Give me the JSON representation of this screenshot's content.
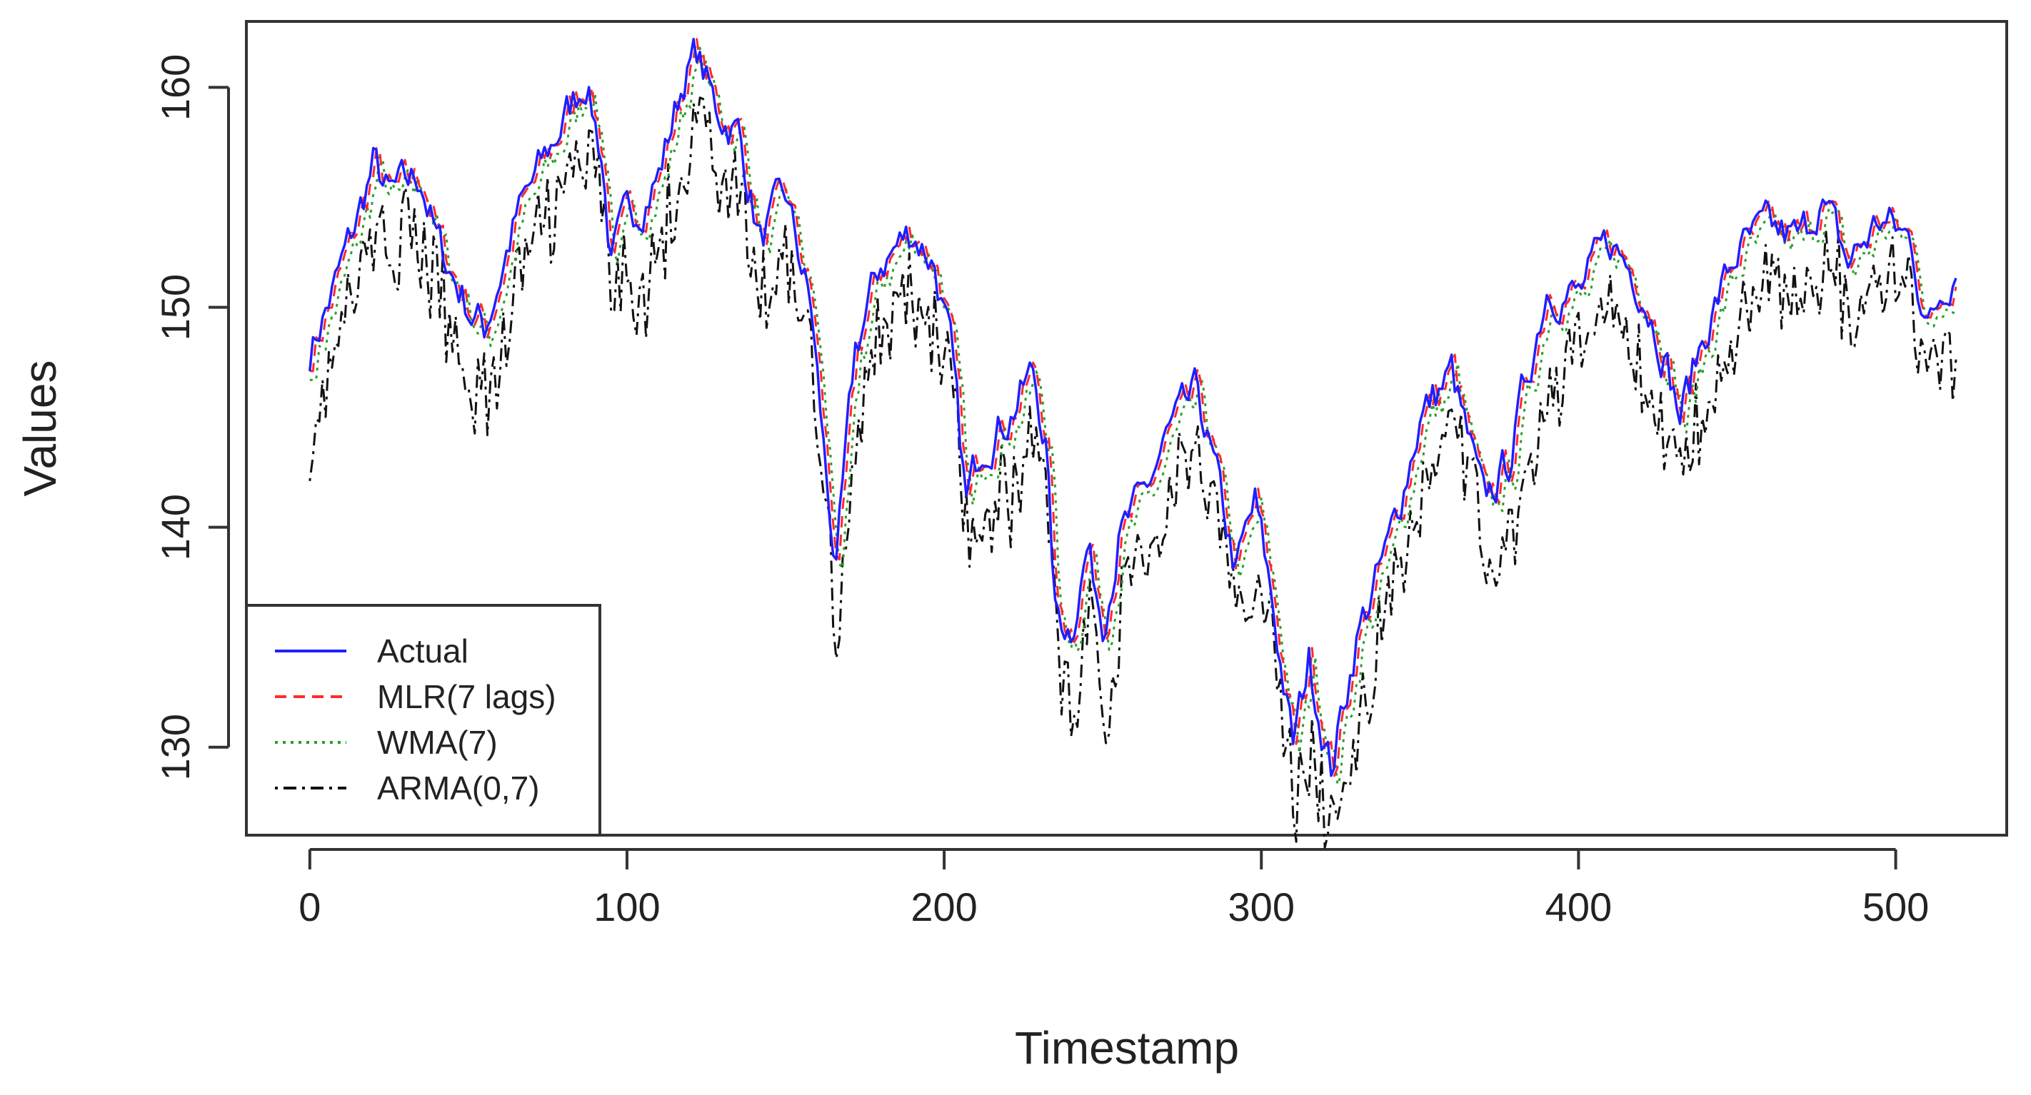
{
  "chart_data": {
    "type": "line",
    "title": "",
    "xlabel": "Timestamp",
    "ylabel": "Values",
    "xlim": [
      -20,
      535
    ],
    "ylim": [
      126,
      163
    ],
    "xticks": [
      0,
      100,
      200,
      300,
      400,
      500
    ],
    "yticks": [
      130,
      140,
      150,
      160
    ],
    "legend": {
      "position": "bottom-left"
    },
    "anchors": [
      [
        0,
        148
      ],
      [
        8,
        151
      ],
      [
        15,
        154
      ],
      [
        20,
        156.5
      ],
      [
        25,
        155
      ],
      [
        35,
        156
      ],
      [
        40,
        153
      ],
      [
        50,
        150
      ],
      [
        55,
        149
      ],
      [
        65,
        154
      ],
      [
        75,
        157
      ],
      [
        87,
        160.5
      ],
      [
        92,
        157
      ],
      [
        95,
        152
      ],
      [
        100,
        154
      ],
      [
        110,
        156
      ],
      [
        118,
        160.5
      ],
      [
        122,
        161.5
      ],
      [
        128,
        159
      ],
      [
        135,
        158
      ],
      [
        142,
        153
      ],
      [
        150,
        155
      ],
      [
        158,
        150
      ],
      [
        163,
        142
      ],
      [
        166,
        138
      ],
      [
        172,
        148
      ],
      [
        180,
        152
      ],
      [
        190,
        153.5
      ],
      [
        197,
        152
      ],
      [
        202,
        148
      ],
      [
        207,
        141
      ],
      [
        212,
        144
      ],
      [
        220,
        145
      ],
      [
        228,
        147
      ],
      [
        232,
        144
      ],
      [
        235,
        136
      ],
      [
        240,
        135.5
      ],
      [
        245,
        139
      ],
      [
        250,
        136
      ],
      [
        255,
        139.5
      ],
      [
        262,
        141
      ],
      [
        270,
        144
      ],
      [
        280,
        146
      ],
      [
        286,
        142
      ],
      [
        292,
        138
      ],
      [
        298,
        141
      ],
      [
        303,
        137
      ],
      [
        310,
        130
      ],
      [
        315,
        134
      ],
      [
        322,
        129
      ],
      [
        330,
        135
      ],
      [
        340,
        139
      ],
      [
        350,
        145
      ],
      [
        360,
        147
      ],
      [
        370,
        141
      ],
      [
        378,
        143
      ],
      [
        390,
        151
      ],
      [
        400,
        150.5
      ],
      [
        410,
        153
      ],
      [
        420,
        151
      ],
      [
        427,
        148
      ],
      [
        432,
        145
      ],
      [
        440,
        149
      ],
      [
        450,
        152.5
      ],
      [
        460,
        153.5
      ],
      [
        470,
        153
      ],
      [
        476,
        155
      ],
      [
        485,
        152
      ],
      [
        495,
        154
      ],
      [
        505,
        153
      ],
      [
        510,
        149
      ],
      [
        515,
        151
      ],
      [
        519,
        152
      ]
    ],
    "series": [
      {
        "name": "Actual",
        "color": "#1f1fff",
        "style": "solid",
        "lag": 0,
        "offset": 0
      },
      {
        "name": "MLR(7 lags)",
        "color": "#ff2a2a",
        "style": "dashed",
        "lag": 1,
        "offset": 0
      },
      {
        "name": "WMA(7)",
        "color": "#2aa02a",
        "style": "dotted",
        "lag": 2,
        "offset": -0.4
      },
      {
        "name": "ARMA(0,7)",
        "color": "#111111",
        "style": "dotdash",
        "lag": 1,
        "offset": -3
      }
    ]
  }
}
